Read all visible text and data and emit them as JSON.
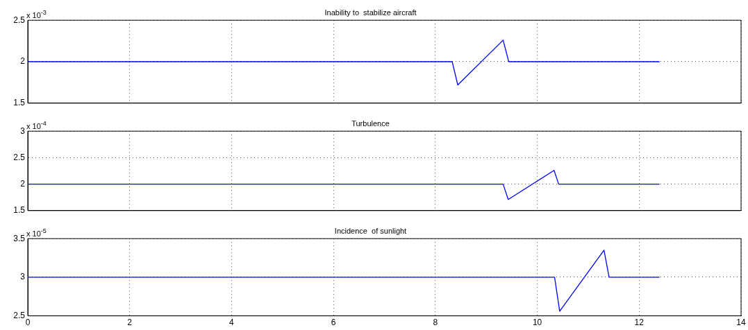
{
  "chart_data": [
    {
      "type": "line",
      "title": "Inability to  stabilize aircraft",
      "annotations": [
        "x 10$^{-3}$"
      ],
      "x": [
        0,
        8.33,
        8.44,
        9.33,
        9.44,
        12.4
      ],
      "series": [
        {
          "color": "#0000ff",
          "values": [
            2,
            2,
            1.72,
            2.26,
            2,
            2
          ]
        }
      ],
      "xlim": [
        0,
        14
      ],
      "xticks": [
        0,
        2,
        4,
        6,
        8,
        10,
        12,
        14
      ],
      "ylim": [
        1.5,
        2.5
      ],
      "yticks": [
        1.5,
        2,
        2.5
      ],
      "grid": true,
      "legend": false,
      "marker": "none",
      "line_style": "solid",
      "tick_labels": "y"
    },
    {
      "type": "line",
      "title": "Turbulence",
      "annotations": [
        "x 10$^{-4}$"
      ],
      "x": [
        0,
        9.33,
        9.43,
        10.33,
        10.42,
        12.4
      ],
      "series": [
        {
          "color": "#0000ff",
          "values": [
            2,
            2,
            1.71,
            2.26,
            2,
            2
          ]
        }
      ],
      "xlim": [
        0,
        14
      ],
      "xticks": [
        0,
        2,
        4,
        6,
        8,
        10,
        12,
        14
      ],
      "ylim": [
        1.5,
        3
      ],
      "yticks": [
        1.5,
        2,
        2.5,
        3
      ],
      "grid": true,
      "legend": false,
      "marker": "none",
      "line_style": "solid",
      "tick_labels": "y"
    },
    {
      "type": "line",
      "title": "Incidence  of sunlight",
      "annotations": [
        "x 10$^{-5}$"
      ],
      "x": [
        0,
        10.34,
        10.44,
        11.31,
        11.41,
        12.4
      ],
      "series": [
        {
          "color": "#0000ff",
          "values": [
            3,
            3,
            2.56,
            3.35,
            3,
            3
          ]
        }
      ],
      "xlim": [
        0,
        14
      ],
      "xticks": [
        0,
        2,
        4,
        6,
        8,
        10,
        12,
        14
      ],
      "ylim": [
        2.5,
        3.5
      ],
      "yticks": [
        2.5,
        3,
        3.5
      ],
      "grid": true,
      "legend": false,
      "marker": "none",
      "line_style": "solid"
    }
  ]
}
